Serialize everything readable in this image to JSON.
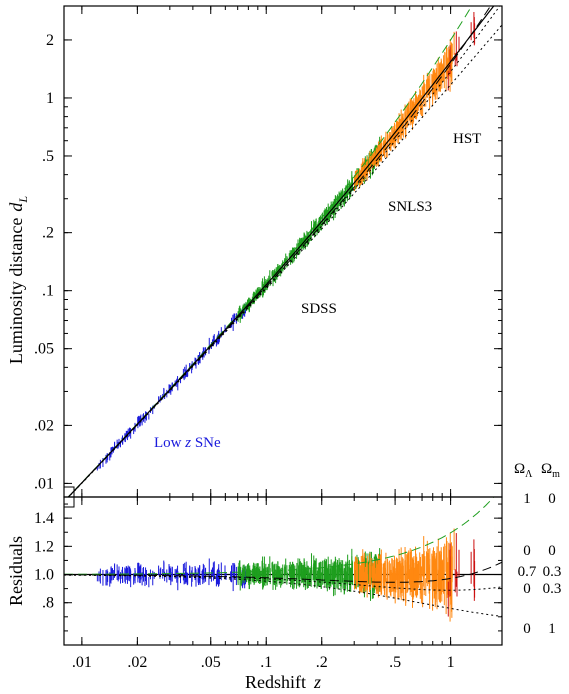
{
  "chart_data": [
    {
      "type": "scatter",
      "panel": "top",
      "title": "",
      "ylabel_main": "Luminosity distance",
      "ylabel_sym": "d",
      "ylabel_sub": "L",
      "xscale": "log",
      "yscale": "log",
      "xlim": [
        0.008,
        1.9
      ],
      "ylim": [
        0.0085,
        3.0
      ],
      "y_ticks": [
        {
          "v": 0.01,
          "label": ".01"
        },
        {
          "v": 0.02,
          "label": ".02"
        },
        {
          "v": 0.05,
          "label": ".05"
        },
        {
          "v": 0.1,
          "label": ".1"
        },
        {
          "v": 0.2,
          "label": ".2"
        },
        {
          "v": 0.5,
          "label": ".5"
        },
        {
          "v": 1,
          "label": "1"
        },
        {
          "v": 2,
          "label": "2"
        }
      ],
      "series": [
        {
          "name": "Low z SNe",
          "color": "#1a1adc",
          "z_range": [
            0.012,
            0.08
          ]
        },
        {
          "name": "SDSS",
          "color": "#1e9e1e",
          "z_range": [
            0.07,
            0.42
          ]
        },
        {
          "name": "SNLS3",
          "color": "#ff8811",
          "z_range": [
            0.3,
            1.05
          ]
        },
        {
          "name": "HST",
          "color": "#cc1111",
          "z_range": [
            0.95,
            1.4
          ]
        }
      ],
      "annotations": [
        {
          "text_main": "Low ",
          "text_sym": "z",
          "text_rest": " SNe",
          "color": "#1a1adc"
        },
        {
          "text_main": "SDSS",
          "text_sym": "",
          "text_rest": "",
          "color": "#1e9e1e"
        },
        {
          "text_main": "SNLS3",
          "text_sym": "",
          "text_rest": "",
          "color": "#ff8811"
        },
        {
          "text_main": "HST",
          "text_sym": "",
          "text_rest": "",
          "color": "#cc1111"
        }
      ],
      "models": [
        {
          "omega_lambda": 1,
          "omega_m": 0,
          "style": "dashed",
          "color": "#1e9e1e"
        },
        {
          "omega_lambda": 0,
          "omega_m": 0,
          "style": "dashed",
          "color": "#000000"
        },
        {
          "omega_lambda": 0.7,
          "omega_m": 0.3,
          "style": "solid",
          "color": "#000000"
        },
        {
          "omega_lambda": 0,
          "omega_m": 0.3,
          "style": "dotted",
          "color": "#000000"
        },
        {
          "omega_lambda": 0,
          "omega_m": 1,
          "style": "dotted",
          "color": "#000000"
        }
      ]
    },
    {
      "type": "scatter",
      "panel": "bottom",
      "title": "",
      "xlabel_main": "Redshift",
      "xlabel_sym": "z",
      "ylabel": "Residuals",
      "xscale": "log",
      "xlim": [
        0.008,
        1.9
      ],
      "ylim": [
        0.5,
        1.55
      ],
      "x_ticks": [
        {
          "v": 0.01,
          "label": ".01"
        },
        {
          "v": 0.02,
          "label": ".02"
        },
        {
          "v": 0.05,
          "label": ".05"
        },
        {
          "v": 0.1,
          "label": ".1"
        },
        {
          "v": 0.2,
          "label": ".2"
        },
        {
          "v": 0.5,
          "label": ".5"
        },
        {
          "v": 1,
          "label": "1"
        }
      ],
      "y_ticks": [
        {
          "v": 0.8,
          "label": ".8"
        },
        {
          "v": 1.0,
          "label": "1.0"
        },
        {
          "v": 1.2,
          "label": "1.2"
        },
        {
          "v": 1.4,
          "label": "1.4"
        }
      ],
      "reference_line": 1.0
    }
  ],
  "legend": {
    "header_lambda": "Ω",
    "header_lambda_sub": "Λ",
    "header_m": "Ω",
    "header_m_sub": "m",
    "rows": [
      {
        "ol": "1",
        "om": "0"
      },
      {
        "ol": "0",
        "om": "0"
      },
      {
        "ol": "0.7",
        "om": "0.3"
      },
      {
        "ol": "0",
        "om": "0.3"
      },
      {
        "ol": "0",
        "om": "1"
      }
    ]
  }
}
